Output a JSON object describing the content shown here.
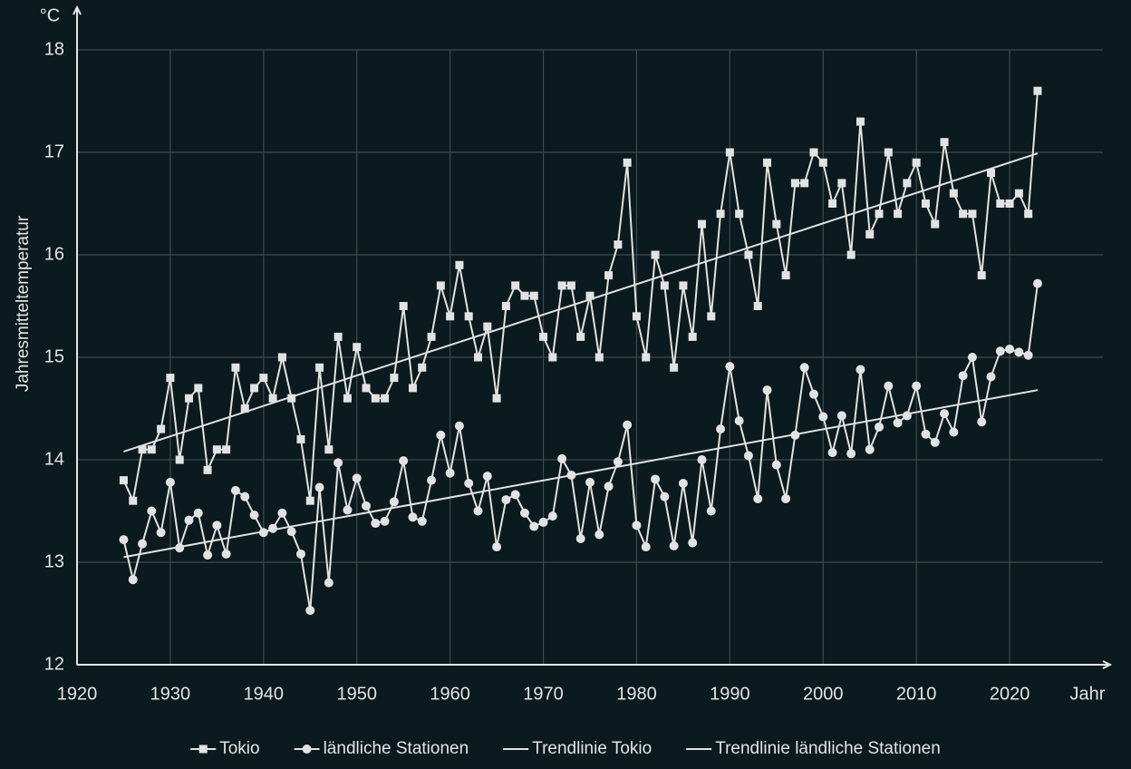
{
  "chart_data": {
    "type": "line",
    "y_label": "Jahresmitteltemperatur",
    "y_unit": "°C",
    "x_label": "Jahr",
    "xlim": [
      1920,
      2030
    ],
    "xticks": [
      1920,
      1930,
      1940,
      1950,
      1960,
      1970,
      1980,
      1990,
      2000,
      2010,
      2020
    ],
    "ylim": [
      12,
      18
    ],
    "yticks": [
      12,
      13,
      14,
      15,
      16,
      17,
      18
    ],
    "grid": true,
    "legend": "bottom",
    "x": [
      1925,
      1926,
      1927,
      1928,
      1929,
      1930,
      1931,
      1932,
      1933,
      1934,
      1935,
      1936,
      1937,
      1938,
      1939,
      1940,
      1941,
      1942,
      1943,
      1944,
      1945,
      1946,
      1947,
      1948,
      1949,
      1950,
      1951,
      1952,
      1953,
      1954,
      1955,
      1956,
      1957,
      1958,
      1959,
      1960,
      1961,
      1962,
      1963,
      1964,
      1965,
      1966,
      1967,
      1968,
      1969,
      1970,
      1971,
      1972,
      1973,
      1974,
      1975,
      1976,
      1977,
      1978,
      1979,
      1980,
      1981,
      1982,
      1983,
      1984,
      1985,
      1986,
      1987,
      1988,
      1989,
      1990,
      1991,
      1992,
      1993,
      1994,
      1995,
      1996,
      1997,
      1998,
      1999,
      2000,
      2001,
      2002,
      2003,
      2004,
      2005,
      2006,
      2007,
      2008,
      2009,
      2010,
      2011,
      2012,
      2013,
      2014,
      2015,
      2016,
      2017,
      2018,
      2019,
      2020,
      2021,
      2022,
      2023
    ],
    "series": [
      {
        "name": "Tokio",
        "color": "#e2e2e2",
        "marker": "square",
        "values": [
          13.8,
          13.6,
          14.1,
          14.1,
          14.3,
          14.8,
          14.0,
          14.6,
          14.7,
          13.9,
          14.1,
          14.1,
          14.9,
          14.5,
          14.7,
          14.8,
          14.6,
          15.0,
          14.6,
          14.2,
          13.6,
          14.9,
          14.1,
          15.2,
          14.6,
          15.1,
          14.7,
          14.6,
          14.6,
          14.8,
          15.5,
          14.7,
          14.9,
          15.2,
          15.7,
          15.4,
          15.9,
          15.4,
          15.0,
          15.3,
          14.6,
          15.5,
          15.7,
          15.6,
          15.6,
          15.2,
          15.0,
          15.7,
          15.7,
          15.2,
          15.6,
          15.0,
          15.8,
          16.1,
          16.9,
          15.4,
          15.0,
          16.0,
          15.7,
          14.9,
          15.7,
          15.2,
          16.3,
          15.4,
          16.4,
          17.0,
          16.4,
          16.0,
          15.5,
          16.9,
          16.3,
          15.8,
          16.7,
          16.7,
          17.0,
          16.9,
          16.5,
          16.7,
          16.0,
          17.3,
          16.2,
          16.4,
          17.0,
          16.4,
          16.7,
          16.9,
          16.5,
          16.3,
          17.1,
          16.6,
          16.4,
          16.4,
          15.8,
          16.8,
          16.5,
          16.5,
          16.6,
          16.4,
          17.6
        ]
      },
      {
        "name": "ländliche Stationen",
        "color": "#e2e2e2",
        "marker": "circle",
        "values": [
          13.22,
          12.83,
          13.18,
          13.5,
          13.29,
          13.78,
          13.14,
          13.41,
          13.48,
          13.07,
          13.36,
          13.08,
          13.7,
          13.64,
          13.46,
          13.29,
          13.33,
          13.48,
          13.3,
          13.08,
          12.53,
          13.73,
          12.8,
          13.97,
          13.51,
          13.82,
          13.55,
          13.38,
          13.4,
          13.59,
          13.99,
          13.44,
          13.4,
          13.8,
          14.24,
          13.87,
          14.33,
          13.77,
          13.5,
          13.84,
          13.15,
          13.61,
          13.66,
          13.48,
          13.35,
          13.39,
          13.45,
          14.01,
          13.85,
          13.23,
          13.78,
          13.27,
          13.74,
          13.98,
          14.34,
          13.36,
          13.15,
          13.81,
          13.64,
          13.16,
          13.77,
          13.19,
          14.0,
          13.5,
          14.3,
          14.91,
          14.38,
          14.04,
          13.62,
          14.68,
          13.95,
          13.62,
          14.24,
          14.9,
          14.64,
          14.42,
          14.07,
          14.43,
          14.06,
          14.88,
          14.1,
          14.32,
          14.72,
          14.36,
          14.43,
          14.72,
          14.25,
          14.17,
          14.45,
          14.27,
          14.82,
          15.0,
          14.37,
          14.81,
          15.06,
          15.08,
          15.05,
          15.02,
          15.72
        ]
      },
      {
        "name": "Trendlinie Tokio",
        "color": "#e2e2e2",
        "marker": "none",
        "x": [
          1925,
          2023
        ],
        "values": [
          14.08,
          16.99
        ]
      },
      {
        "name": "Trendlinie ländliche Stationen",
        "color": "#e2e2e2",
        "marker": "none",
        "x": [
          1925,
          2023
        ],
        "values": [
          13.05,
          14.68
        ]
      }
    ]
  }
}
